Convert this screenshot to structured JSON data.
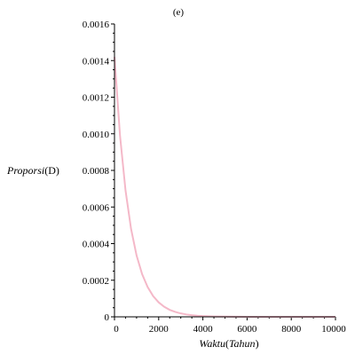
{
  "chart_data": {
    "type": "line",
    "title": "(e)",
    "xlabel": {
      "italic": "Waktu",
      "paren_open": "(",
      "unit": "Tahun",
      "paren_close": ")"
    },
    "ylabel": {
      "italic": "Proporsi",
      "paren_open": "(",
      "unit": "D",
      "paren_close": ")"
    },
    "xlim": [
      0,
      10000
    ],
    "ylim": [
      0,
      0.0016
    ],
    "x_ticks": [
      0,
      2000,
      4000,
      6000,
      8000,
      10000
    ],
    "x_tick_labels": [
      "0",
      "2000",
      "4000",
      "6000",
      "8000",
      "10000"
    ],
    "y_ticks": [
      0,
      0.0002,
      0.0004,
      0.0006,
      0.0008,
      0.001,
      0.0012,
      0.0014,
      0.0016
    ],
    "y_tick_labels": [
      "0",
      "0.0002",
      "0.0004",
      "0.0006",
      "0.0008",
      "0.0010",
      "0.0012",
      "0.0014",
      "0.0016"
    ],
    "grid": false,
    "line_color": "#f4b8c8",
    "series": [
      {
        "x": [
          0,
          250,
          500,
          750,
          1000,
          1250,
          1500,
          1750,
          2000,
          2250,
          2500,
          2750,
          3000,
          3250,
          3500,
          3750,
          4000,
          4500,
          5000,
          6000,
          7000,
          8000,
          9000,
          10000
        ],
        "y": [
          0.00142,
          0.00099,
          0.00069,
          0.00048,
          0.000335,
          0.000233,
          0.000163,
          0.000113,
          7.9e-05,
          5.5e-05,
          3.8e-05,
          2.7e-05,
          1.86e-05,
          1.3e-05,
          9.1e-06,
          6.3e-06,
          4.4e-06,
          2.1e-06,
          1e-06,
          2e-07,
          5e-08,
          1e-08,
          0.0,
          0.0
        ]
      }
    ]
  }
}
